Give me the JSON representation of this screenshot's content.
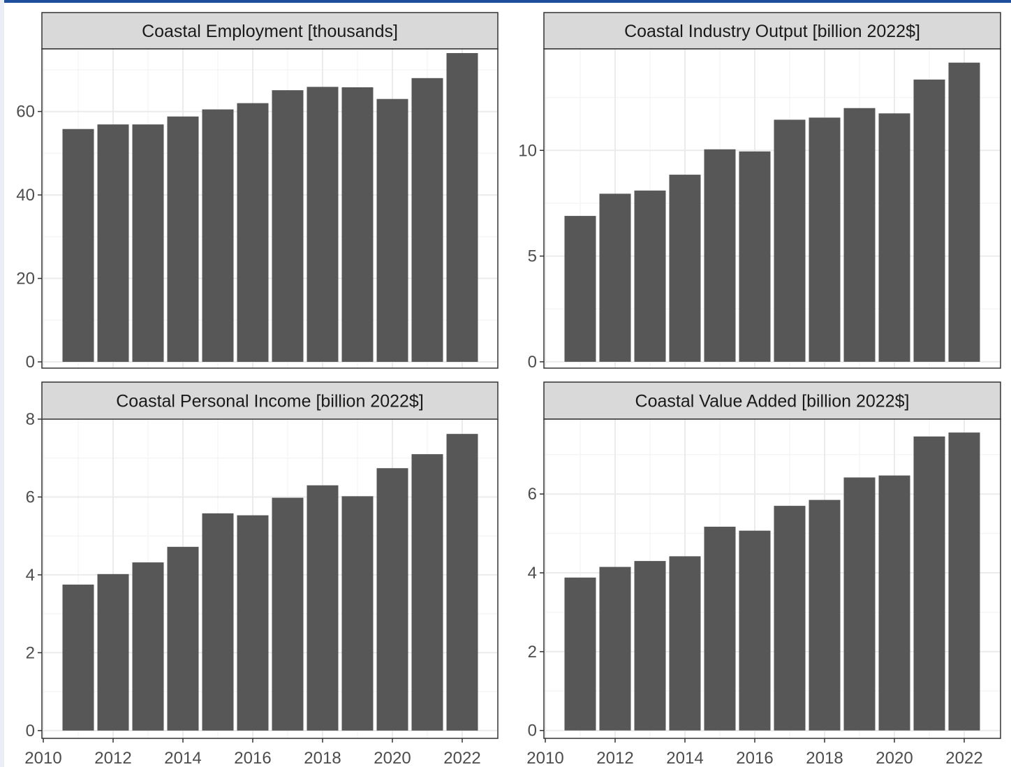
{
  "chart_data": [
    {
      "type": "bar",
      "title": "Coastal Employment [thousands]",
      "x": [
        2011,
        2012,
        2013,
        2014,
        2015,
        2016,
        2017,
        2018,
        2019,
        2020,
        2021,
        2022
      ],
      "values": [
        55.8,
        56.9,
        56.9,
        58.8,
        60.5,
        62.0,
        65.1,
        65.9,
        65.8,
        63.0,
        68.0,
        74.0
      ],
      "xlim": [
        2010,
        2022.5
      ],
      "ylim": [
        -1.5,
        75
      ],
      "yticks": [
        0,
        20,
        40,
        60
      ],
      "xticks": [
        2010,
        2012,
        2014,
        2016,
        2018,
        2020,
        2022
      ],
      "grid": true
    },
    {
      "type": "bar",
      "title": "Coastal Industry Output [billion 2022$]",
      "x": [
        2011,
        2012,
        2013,
        2014,
        2015,
        2016,
        2017,
        2018,
        2019,
        2020,
        2021,
        2022
      ],
      "values": [
        6.9,
        7.95,
        8.1,
        8.85,
        10.05,
        9.95,
        11.45,
        11.55,
        12.0,
        11.75,
        13.35,
        14.15
      ],
      "xlim": [
        2010,
        2022.5
      ],
      "ylim": [
        -0.3,
        14.8
      ],
      "yticks": [
        0,
        5,
        10
      ],
      "xticks": [
        2010,
        2012,
        2014,
        2016,
        2018,
        2020,
        2022
      ],
      "grid": true
    },
    {
      "type": "bar",
      "title": "Coastal Personal Income [billion 2022$]",
      "x": [
        2011,
        2012,
        2013,
        2014,
        2015,
        2016,
        2017,
        2018,
        2019,
        2020,
        2021,
        2022
      ],
      "values": [
        3.75,
        4.02,
        4.32,
        4.72,
        5.58,
        5.53,
        5.98,
        6.3,
        6.02,
        6.74,
        7.1,
        7.62
      ],
      "xlim": [
        2010,
        2022.5
      ],
      "ylim": [
        -0.2,
        8.0
      ],
      "yticks": [
        0,
        2,
        4,
        6,
        8
      ],
      "xticks": [
        2010,
        2012,
        2014,
        2016,
        2018,
        2020,
        2022
      ],
      "grid": true
    },
    {
      "type": "bar",
      "title": "Coastal Value Added [billion 2022$]",
      "x": [
        2011,
        2012,
        2013,
        2014,
        2015,
        2016,
        2017,
        2018,
        2019,
        2020,
        2021,
        2022
      ],
      "values": [
        3.88,
        4.15,
        4.3,
        4.42,
        5.17,
        5.07,
        5.7,
        5.85,
        6.42,
        6.47,
        7.46,
        7.56
      ],
      "xlim": [
        2010,
        2022.5
      ],
      "ylim": [
        -0.2,
        7.9
      ],
      "yticks": [
        0,
        2,
        4,
        6
      ],
      "xticks": [
        2010,
        2012,
        2014,
        2016,
        2018,
        2020,
        2022
      ],
      "grid": true
    }
  ],
  "colors": {
    "bar": "#575757",
    "panel_border": "#333333",
    "strip_fill": "#d9d9d9",
    "grid_major": "#ebebeb",
    "grid_minor": "#f5f5f5",
    "tick_text": "#4d4d4d"
  }
}
